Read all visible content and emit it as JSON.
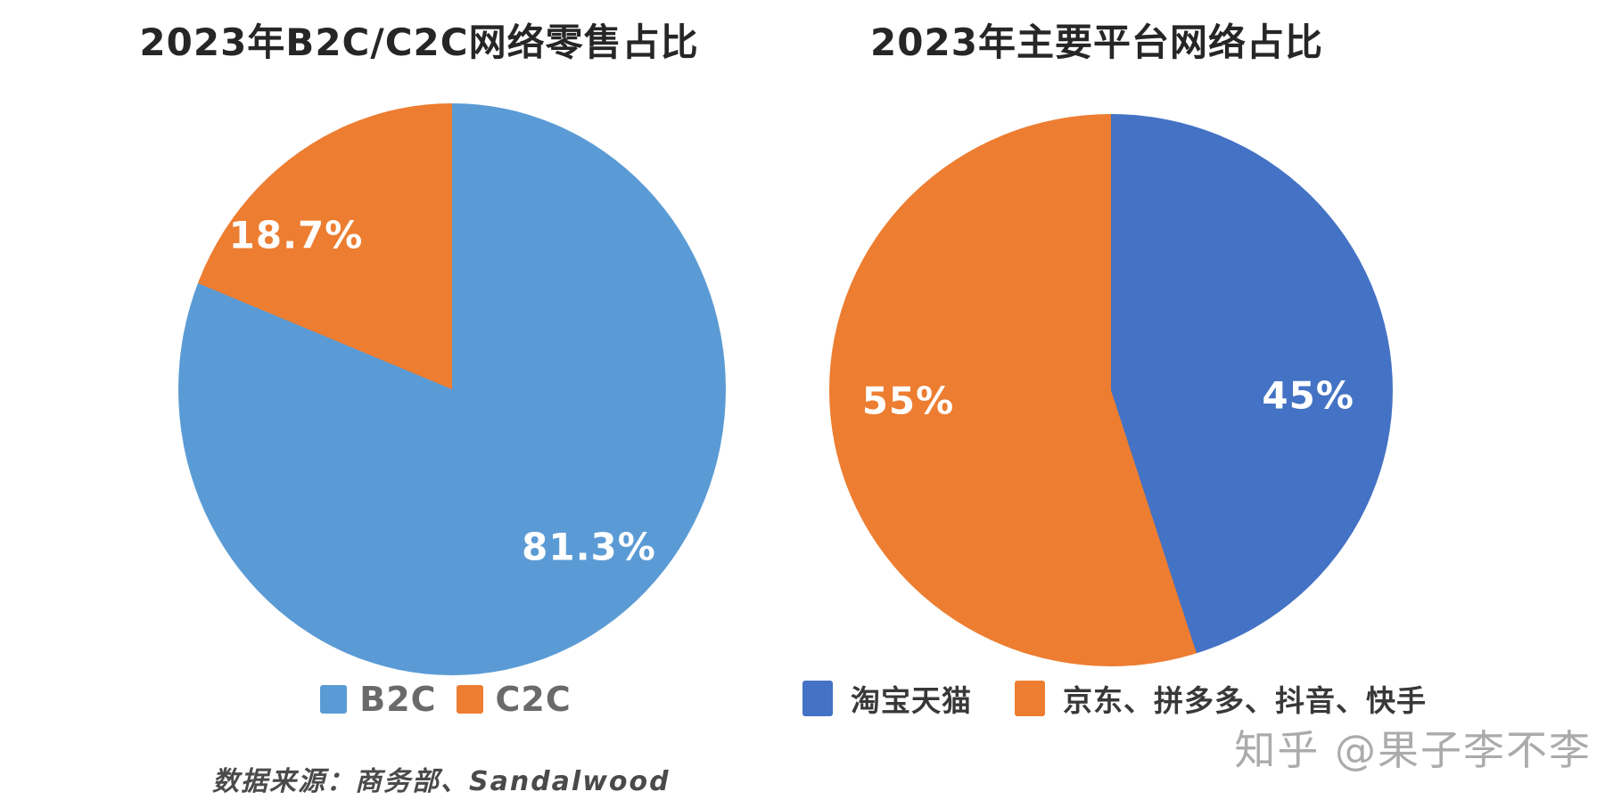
{
  "page": {
    "background": "#ffffff"
  },
  "chart_data": [
    {
      "type": "pie",
      "title": "2023年B2C/C2C网络零售占比",
      "categories": [
        "B2C",
        "C2C"
      ],
      "values": [
        81.3,
        18.7
      ],
      "labels": [
        "81.3%",
        "18.7%"
      ],
      "colors": [
        "#5B9BD5",
        "#ED7D31"
      ],
      "start_angle_deg": 0,
      "direction": "clockwise",
      "legend_position": "bottom",
      "label_color": "#ffffff"
    },
    {
      "type": "pie",
      "title": "2023年主要平台网络占比",
      "categories": [
        "淘宝天猫",
        "京东、拼多多、抖音、快手"
      ],
      "values": [
        45,
        55
      ],
      "labels": [
        "45%",
        "55%"
      ],
      "colors": [
        "#4472C4",
        "#ED7D31"
      ],
      "start_angle_deg": 0,
      "direction": "clockwise",
      "legend_position": "bottom",
      "label_color": "#ffffff"
    }
  ],
  "source_note": {
    "text": "数据来源：商务部、Sandalwood"
  },
  "watermark": {
    "text": "知乎 @果子李不李",
    "color": "#ababab"
  }
}
